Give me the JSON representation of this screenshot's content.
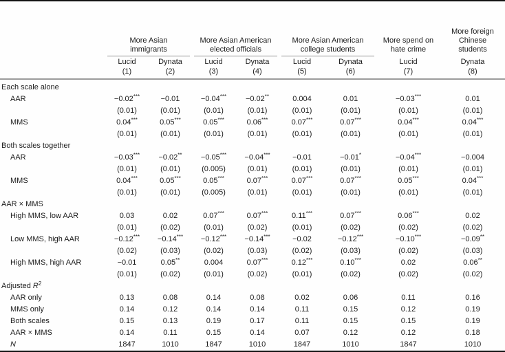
{
  "table": {
    "groups": [
      {
        "label": "More Asian immigrants",
        "cols": 2,
        "underline": true
      },
      {
        "label": "More Asian American elected officials",
        "cols": 2,
        "underline": true
      },
      {
        "label": "More Asian American college students",
        "cols": 2,
        "underline": true
      },
      {
        "label": "More spend on hate crime",
        "cols": 1,
        "underline": false
      },
      {
        "label": "More foreign Chinese students",
        "cols": 1,
        "underline": false
      }
    ],
    "subheaders": [
      {
        "source": "Lucid",
        "number": "(1)"
      },
      {
        "source": "Dynata",
        "number": "(2)"
      },
      {
        "source": "Lucid",
        "number": "(3)"
      },
      {
        "source": "Dynata",
        "number": "(4)"
      },
      {
        "source": "Lucid",
        "number": "(5)"
      },
      {
        "source": "Dynata",
        "number": "(6)"
      },
      {
        "source": "Lucid",
        "number": "(7)"
      },
      {
        "source": "Dynata",
        "number": "(8)"
      }
    ],
    "rows": [
      {
        "type": "section",
        "label": "Each scale alone"
      },
      {
        "type": "estimate",
        "label": "AAR",
        "values": [
          "−0.02***",
          "−0.01",
          "−0.04***",
          "−0.02**",
          "0.004",
          "0.01",
          "−0.03***",
          "0.01"
        ]
      },
      {
        "type": "se",
        "values": [
          "(0.01)",
          "(0.01)",
          "(0.01)",
          "(0.01)",
          "(0.01)",
          "(0.01)",
          "(0.01)",
          "(0.01)"
        ]
      },
      {
        "type": "estimate",
        "label": "MMS",
        "values": [
          "0.04***",
          "0.05***",
          "0.05***",
          "0.06***",
          "0.07***",
          "0.07***",
          "0.04***",
          "0.04***"
        ]
      },
      {
        "type": "se",
        "values": [
          "(0.01)",
          "(0.01)",
          "(0.01)",
          "(0.01)",
          "(0.01)",
          "(0.01)",
          "(0.01)",
          "(0.01)"
        ]
      },
      {
        "type": "section",
        "label": "Both scales together"
      },
      {
        "type": "estimate",
        "label": "AAR",
        "values": [
          "−0.03***",
          "−0.02**",
          "−0.05***",
          "−0.04***",
          "−0.01",
          "−0.01*",
          "−0.04***",
          "−0.004"
        ]
      },
      {
        "type": "se",
        "values": [
          "(0.01)",
          "(0.01)",
          "(0.005)",
          "(0.01)",
          "(0.01)",
          "(0.01)",
          "(0.01)",
          "(0.01)"
        ]
      },
      {
        "type": "estimate",
        "label": "MMS",
        "values": [
          "0.04***",
          "0.05***",
          "0.05***",
          "0.07***",
          "0.07***",
          "0.07***",
          "0.05***",
          "0.04***"
        ]
      },
      {
        "type": "se",
        "values": [
          "(0.01)",
          "(0.01)",
          "(0.005)",
          "(0.01)",
          "(0.01)",
          "(0.01)",
          "(0.01)",
          "(0.01)"
        ]
      },
      {
        "type": "section",
        "label": "AAR × MMS"
      },
      {
        "type": "estimate",
        "label": "High MMS, low AAR",
        "values": [
          "0.03",
          "0.02",
          "0.07***",
          "0.07***",
          "0.11***",
          "0.07***",
          "0.06***",
          "0.02"
        ]
      },
      {
        "type": "se",
        "values": [
          "(0.01)",
          "(0.02)",
          "(0.01)",
          "(0.02)",
          "(0.01)",
          "(0.02)",
          "(0.02)",
          "(0.02)"
        ]
      },
      {
        "type": "estimate",
        "label": "Low MMS, high AAR",
        "values": [
          "−0.12***",
          "−0.14***",
          "−0.12***",
          "−0.14***",
          "−0.02",
          "−0.12***",
          "−0.10***",
          "−0.09**"
        ]
      },
      {
        "type": "se",
        "values": [
          "(0.02)",
          "(0.03)",
          "(0.02)",
          "(0.03)",
          "(0.02)",
          "(0.03)",
          "(0.02)",
          "(0.03)"
        ]
      },
      {
        "type": "estimate",
        "label": "High MMS, high AAR",
        "values": [
          "−0.01",
          "0.05**",
          "0.004",
          "0.07***",
          "0.12***",
          "0.10***",
          "0.02",
          "0.06**"
        ]
      },
      {
        "type": "se",
        "values": [
          "(0.01)",
          "(0.02)",
          "(0.01)",
          "(0.02)",
          "(0.01)",
          "(0.02)",
          "(0.02)",
          "(0.02)"
        ]
      },
      {
        "type": "section",
        "label": "Adjusted ",
        "label_math": "R",
        "label_sup": "2"
      },
      {
        "type": "stat",
        "label": "AAR only",
        "values": [
          "0.13",
          "0.08",
          "0.14",
          "0.08",
          "0.02",
          "0.06",
          "0.11",
          "0.16"
        ]
      },
      {
        "type": "stat",
        "label": "MMS only",
        "values": [
          "0.14",
          "0.12",
          "0.14",
          "0.14",
          "0.11",
          "0.15",
          "0.12",
          "0.19"
        ]
      },
      {
        "type": "stat",
        "label": "Both scales",
        "values": [
          "0.15",
          "0.13",
          "0.19",
          "0.17",
          "0.11",
          "0.15",
          "0.15",
          "0.19"
        ]
      },
      {
        "type": "stat",
        "label": "AAR × MMS",
        "values": [
          "0.14",
          "0.11",
          "0.15",
          "0.14",
          "0.07",
          "0.12",
          "0.12",
          "0.18"
        ]
      },
      {
        "type": "stat",
        "label": "N",
        "italic": true,
        "values": [
          "1847",
          "1010",
          "1847",
          "1010",
          "1847",
          "1010",
          "1847",
          "1010"
        ]
      }
    ],
    "colors": {
      "rule_heavy": "#131313",
      "rule_light": "#9c9c9c",
      "text": "#1b1b1b"
    }
  }
}
